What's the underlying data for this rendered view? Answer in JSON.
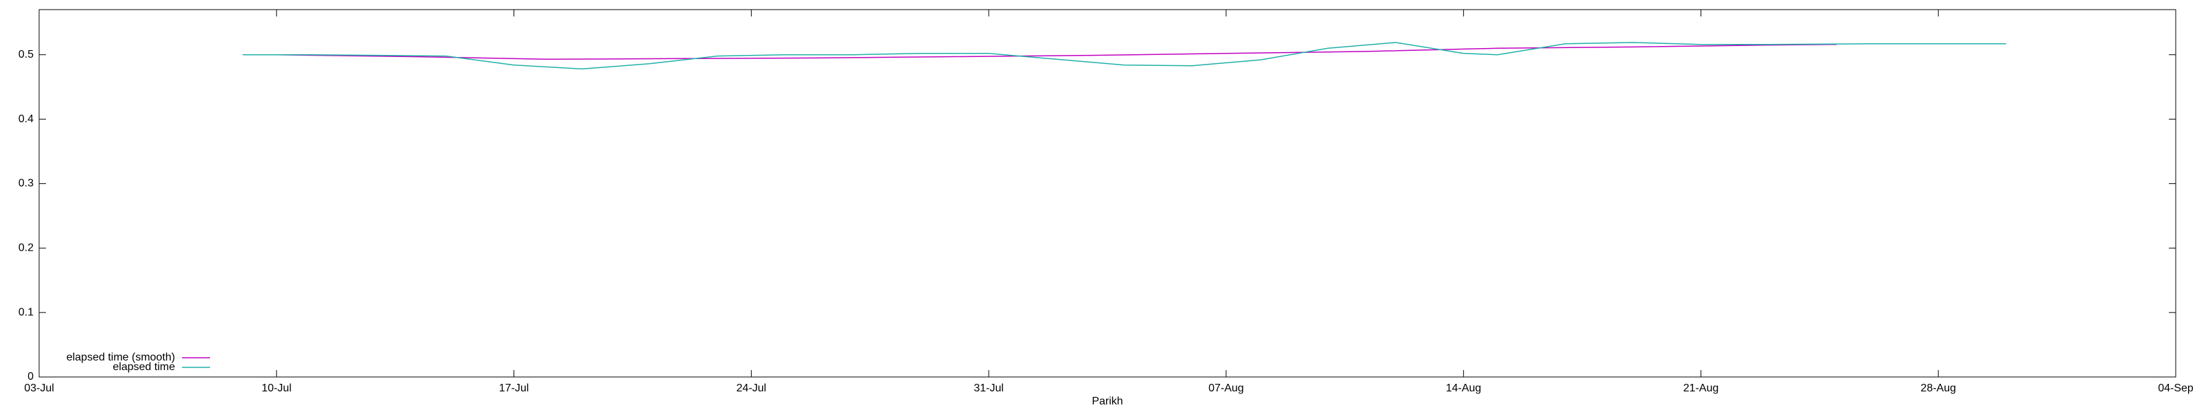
{
  "chart_data": {
    "type": "line",
    "xlabel": "Parikh",
    "xlim": [
      "03-Jul",
      "04-Sep"
    ],
    "xticks": [
      "03-Jul",
      "10-Jul",
      "17-Jul",
      "24-Jul",
      "31-Jul",
      "07-Aug",
      "14-Aug",
      "21-Aug",
      "28-Aug",
      "04-Sep"
    ],
    "ylim": [
      0,
      0.57
    ],
    "yticks": [
      0,
      0.1,
      0.2,
      0.3,
      0.4,
      0.5
    ],
    "legend": "bottom-left",
    "series": [
      {
        "name": "elapsed time (smooth)",
        "color": "#c000c0",
        "x": [
          "10-Jul",
          "14-Jul",
          "18-Jul",
          "22-Jul",
          "26-Jul",
          "30-Jul",
          "03-Aug",
          "07-Aug",
          "11-Aug",
          "15-Aug",
          "19-Aug",
          "23-Aug",
          "25-Aug"
        ],
        "values": [
          0.5,
          0.497,
          0.493,
          0.494,
          0.495,
          0.497,
          0.499,
          0.502,
          0.505,
          0.51,
          0.512,
          0.515,
          0.516
        ]
      },
      {
        "name": "elapsed time",
        "color": "#1fb0a8",
        "x": [
          "09-Jul",
          "11-Jul",
          "13-Jul",
          "15-Jul",
          "17-Jul",
          "19-Jul",
          "21-Jul",
          "23-Jul",
          "25-Jul",
          "27-Jul",
          "29-Jul",
          "31-Jul",
          "02-Aug",
          "04-Aug",
          "06-Aug",
          "08-Aug",
          "10-Aug",
          "12-Aug",
          "14-Aug",
          "15-Aug",
          "17-Aug",
          "19-Aug",
          "21-Aug",
          "23-Aug",
          "26-Aug",
          "30-Aug"
        ],
        "values": [
          0.5,
          0.5,
          0.499,
          0.498,
          0.484,
          0.478,
          0.486,
          0.498,
          0.5,
          0.5,
          0.502,
          0.502,
          0.493,
          0.484,
          0.483,
          0.492,
          0.51,
          0.519,
          0.502,
          0.5,
          0.517,
          0.519,
          0.516,
          0.516,
          0.517,
          0.517
        ]
      }
    ]
  }
}
